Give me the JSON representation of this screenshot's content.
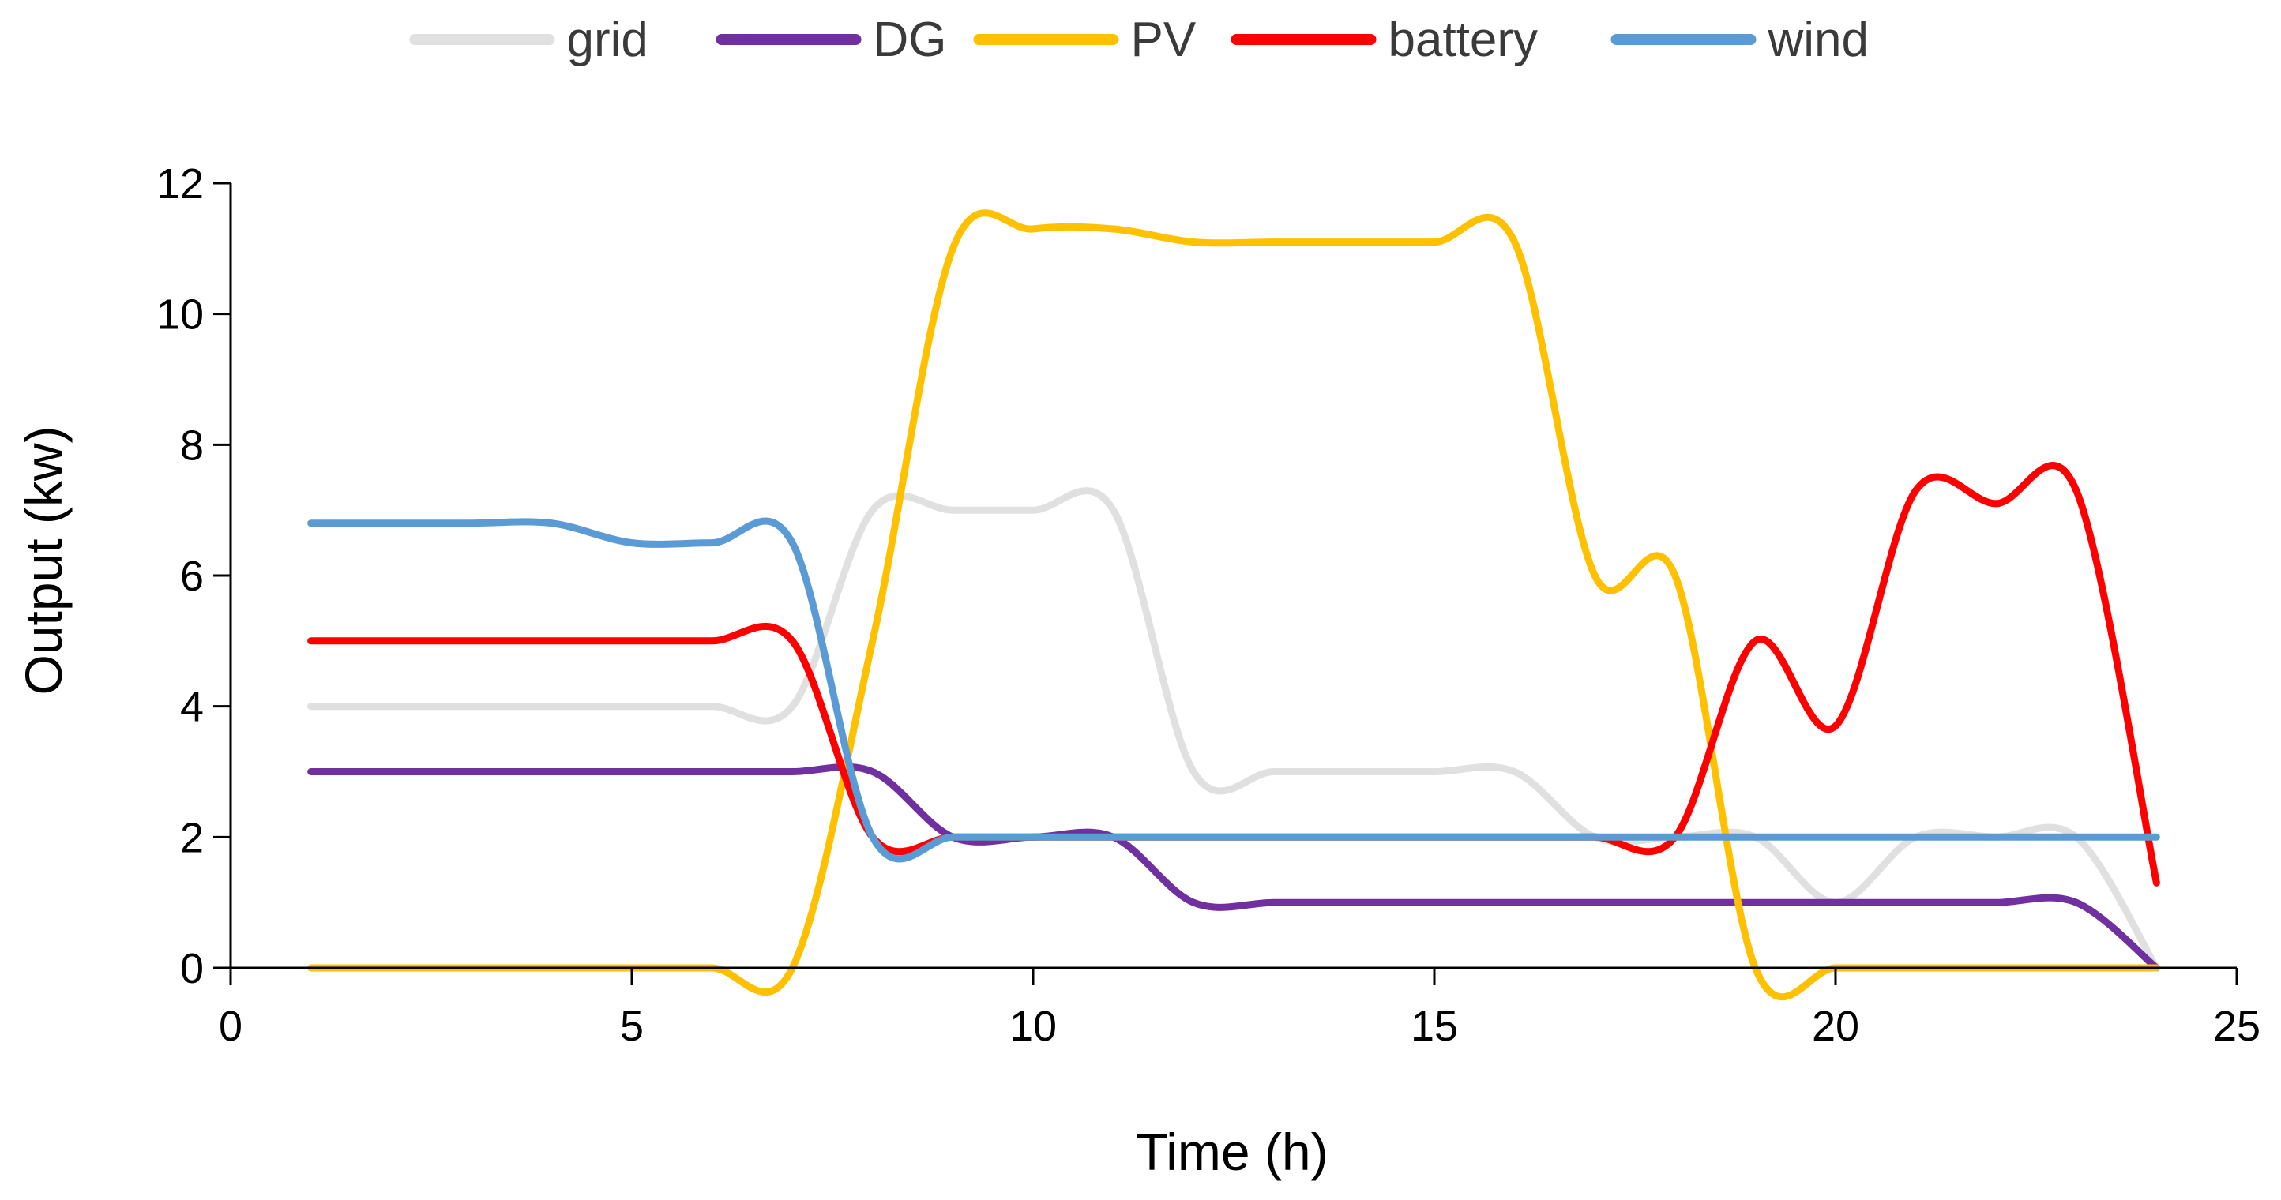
{
  "chart_data": {
    "type": "line",
    "title": "",
    "xlabel": "Time (h)",
    "ylabel": "Output (kw)",
    "xlim": [
      0,
      25
    ],
    "ylim": [
      0,
      12
    ],
    "xticks": [
      "0",
      "5",
      "10",
      "15",
      "20",
      "25"
    ],
    "yticks": [
      "0",
      "2",
      "4",
      "6",
      "8",
      "10",
      "12"
    ],
    "legend_position": "top",
    "grid": false,
    "x": [
      1,
      2,
      3,
      4,
      5,
      6,
      7,
      8,
      9,
      10,
      11,
      12,
      13,
      14,
      15,
      16,
      17,
      18,
      19,
      20,
      21,
      22,
      23,
      24
    ],
    "series": [
      {
        "name": "grid",
        "color": "#e0e0e0",
        "values": [
          4,
          4,
          4,
          4,
          4,
          4,
          4,
          7,
          7,
          7,
          7,
          3,
          3,
          3,
          3,
          3,
          2,
          2,
          2,
          1,
          2,
          2,
          2,
          0
        ]
      },
      {
        "name": "DG",
        "color": "#7030a0",
        "values": [
          3,
          3,
          3,
          3,
          3,
          3,
          3,
          3,
          2,
          2,
          2,
          1,
          1,
          1,
          1,
          1,
          1,
          1,
          1,
          1,
          1,
          1,
          1,
          0
        ]
      },
      {
        "name": "PV",
        "color": "#ffc000",
        "values": [
          0,
          0,
          0,
          0,
          0,
          0,
          0,
          5,
          11,
          11.3,
          11.3,
          11.1,
          11.1,
          11.1,
          11.1,
          11.1,
          6,
          6,
          0,
          0,
          0,
          0,
          0,
          0
        ]
      },
      {
        "name": "battery",
        "color": "#ff0000",
        "values": [
          5,
          5,
          5,
          5,
          5,
          5,
          5,
          2,
          2,
          2,
          2,
          2,
          2,
          2,
          2,
          2,
          2,
          2,
          5,
          3.7,
          7.3,
          7.1,
          7.3,
          1.3
        ]
      },
      {
        "name": "wind",
        "color": "#5b9bd5",
        "values": [
          6.8,
          6.8,
          6.8,
          6.8,
          6.5,
          6.5,
          6.5,
          2,
          2,
          2,
          2,
          2,
          2,
          2,
          2,
          2,
          2,
          2,
          2,
          2,
          2,
          2,
          2,
          2
        ]
      }
    ]
  }
}
